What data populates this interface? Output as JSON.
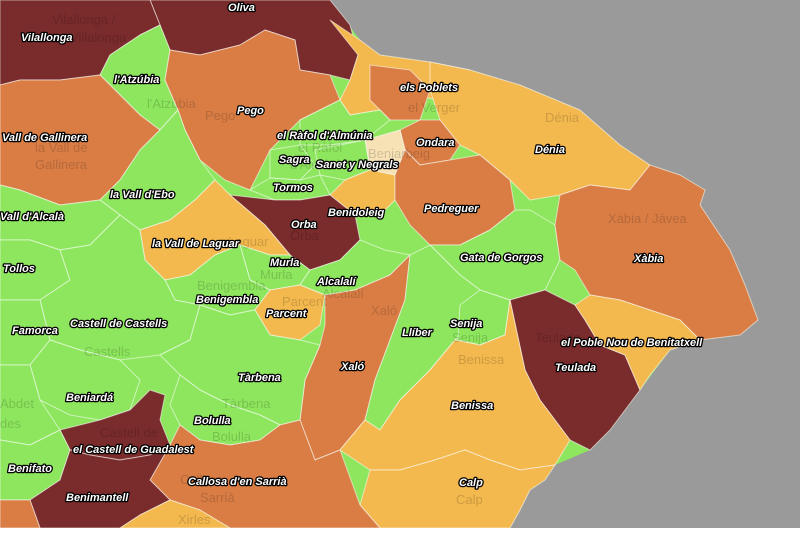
{
  "colors": {
    "sea": "#9a9a9a",
    "white_edge": "#ffffff",
    "green": "#8de65e",
    "orange": "#d97d45",
    "yellow": "#f3b84e",
    "dark": "#7a2b2b",
    "cream": "#f7e2b6"
  },
  "labels": [
    {
      "id": "oliva",
      "text": "Oliva"
    },
    {
      "id": "vilallonga",
      "text": "Vilallonga"
    },
    {
      "id": "atzubia",
      "text": "l'Atzúbia"
    },
    {
      "id": "pego",
      "text": "Pego"
    },
    {
      "id": "els-poblets",
      "text": "els Poblets"
    },
    {
      "id": "vall-gallinera",
      "text": "Vall de Gallinera"
    },
    {
      "id": "rafol-almunia",
      "text": "el Ràfol d'Almúnia"
    },
    {
      "id": "ondara",
      "text": "Ondara"
    },
    {
      "id": "denia",
      "text": "Dénia"
    },
    {
      "id": "sagra",
      "text": "Sagra"
    },
    {
      "id": "sanet-negrals",
      "text": "Sanet y Negrals"
    },
    {
      "id": "tormos",
      "text": "Tormos"
    },
    {
      "id": "vall-ebo",
      "text": "la Vall d'Ebo"
    },
    {
      "id": "benidoleig",
      "text": "Benidoleig"
    },
    {
      "id": "pedreguer",
      "text": "Pedreguer"
    },
    {
      "id": "vall-alcala",
      "text": "Vall d'Alcalà"
    },
    {
      "id": "orba",
      "text": "Orba"
    },
    {
      "id": "vall-laguar",
      "text": "la Vall de Laguar"
    },
    {
      "id": "gata",
      "text": "Gata de Gorgos"
    },
    {
      "id": "xabia",
      "text": "Xàbia"
    },
    {
      "id": "tollos",
      "text": "Tollos"
    },
    {
      "id": "murla",
      "text": "Murla"
    },
    {
      "id": "alcalali",
      "text": "Alcalalí"
    },
    {
      "id": "benigembla",
      "text": "Benigembla"
    },
    {
      "id": "parcent",
      "text": "Parcent"
    },
    {
      "id": "castell-castells",
      "text": "Castell de Castells"
    },
    {
      "id": "senija",
      "text": "Senija"
    },
    {
      "id": "famorca",
      "text": "Famorca"
    },
    {
      "id": "lliber",
      "text": "Llíber"
    },
    {
      "id": "poble-nou",
      "text": "el Poble Nou de Benitatxell"
    },
    {
      "id": "xalo",
      "text": "Xaló"
    },
    {
      "id": "teulada",
      "text": "Teulada"
    },
    {
      "id": "tarbena",
      "text": "Tàrbena"
    },
    {
      "id": "beniarda",
      "text": "Beniardá"
    },
    {
      "id": "benissa",
      "text": "Benissa"
    },
    {
      "id": "bolulla",
      "text": "Bolulla"
    },
    {
      "id": "castell-guadalest",
      "text": "el Castell de Guadalest"
    },
    {
      "id": "benifato",
      "text": "Benifato"
    },
    {
      "id": "callosa",
      "text": "Callosa d'en Sarrià"
    },
    {
      "id": "calp",
      "text": "Calp"
    },
    {
      "id": "benimantell",
      "text": "Benimantell"
    }
  ],
  "basemap_labels": [
    {
      "id": "b-vilallonga",
      "text": "Vilallonga /"
    },
    {
      "id": "b-vilallonga2",
      "text": "La Villalonga"
    },
    {
      "id": "b-atzubia",
      "text": "l'Atzúbia"
    },
    {
      "id": "b-pego",
      "text": "Pego"
    },
    {
      "id": "b-verger",
      "text": "el Verger"
    },
    {
      "id": "b-denia",
      "text": "Dénia"
    },
    {
      "id": "b-gallinera1",
      "text": "la Vall de"
    },
    {
      "id": "b-gallinera2",
      "text": "Gallinera"
    },
    {
      "id": "b-rafol1",
      "text": "el Ràfol"
    },
    {
      "id": "b-rafol2",
      "text": "d'Almúnia"
    },
    {
      "id": "b-beniarbeig",
      "text": "Beniarbeig"
    },
    {
      "id": "b-xabia",
      "text": "Xàbia / Jávea"
    },
    {
      "id": "b-orba",
      "text": "Orba"
    },
    {
      "id": "b-laguar",
      "text": "Laguar"
    },
    {
      "id": "b-murla",
      "text": "Murla"
    },
    {
      "id": "b-alcalali",
      "text": "Alcalalí"
    },
    {
      "id": "b-benigembla",
      "text": "Benigembla"
    },
    {
      "id": "b-parcent",
      "text": "Parcent"
    },
    {
      "id": "b-castells",
      "text": "Castells"
    },
    {
      "id": "b-xalo",
      "text": "Xaló"
    },
    {
      "id": "b-senija",
      "text": "Senija"
    },
    {
      "id": "b-benissa",
      "text": "Benissa"
    },
    {
      "id": "b-teulada",
      "text": "Teulada"
    },
    {
      "id": "b-tarbena",
      "text": "Tàrbena"
    },
    {
      "id": "b-bolulla",
      "text": "Bolulla"
    },
    {
      "id": "b-guadalest",
      "text": "Castell de"
    },
    {
      "id": "b-callosa",
      "text": "Callosa"
    },
    {
      "id": "b-sarria",
      "text": "Sarrià"
    },
    {
      "id": "b-calp",
      "text": "Calp"
    },
    {
      "id": "b-xirles",
      "text": "Xirles"
    },
    {
      "id": "b-abdet",
      "text": "Abdet"
    },
    {
      "id": "b-des",
      "text": "des"
    }
  ]
}
